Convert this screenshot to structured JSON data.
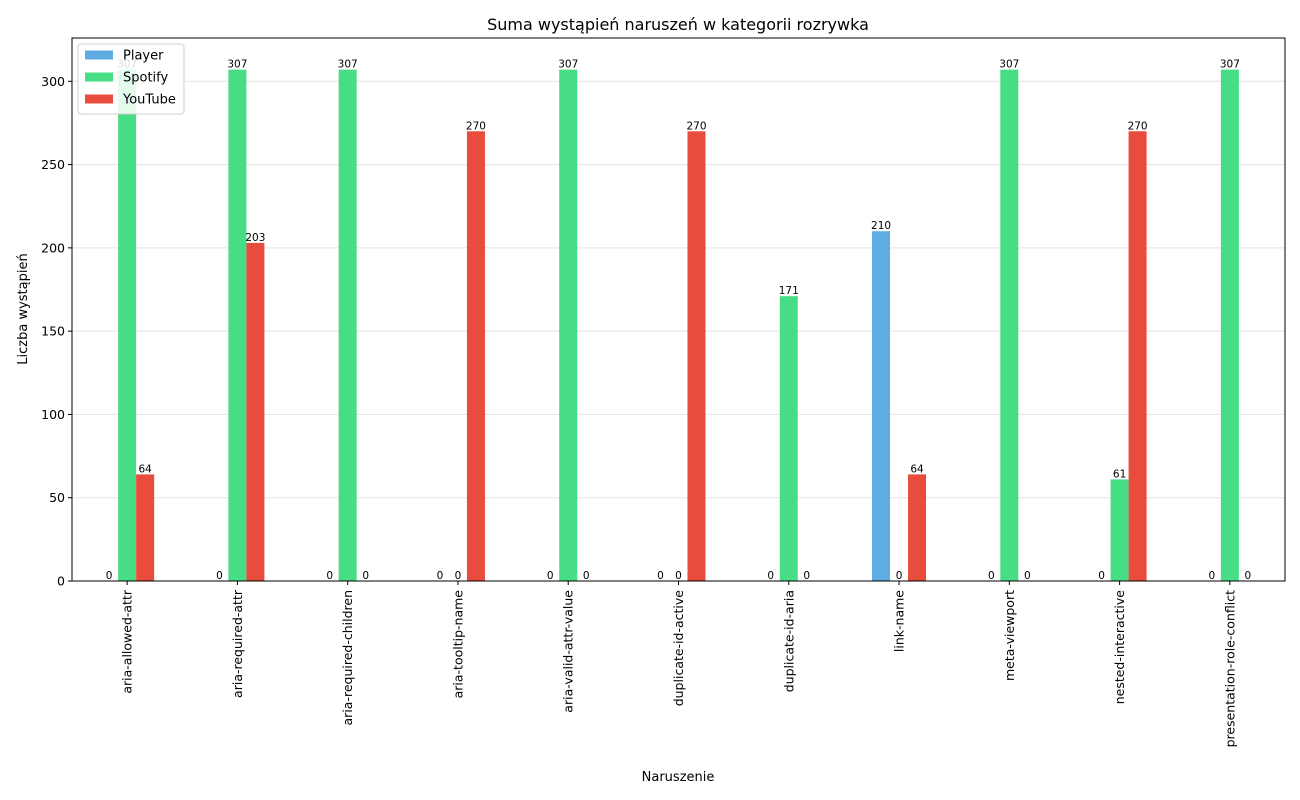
{
  "chart_data": {
    "type": "bar",
    "title": "Suma wystąpień naruszeń w kategorii rozrywka",
    "xlabel": "Naruszenie",
    "ylabel": "Liczba wystąpień",
    "ylim": [
      0,
      326
    ],
    "yticks": [
      0,
      50,
      100,
      150,
      200,
      250,
      300
    ],
    "grid": "y",
    "legend_position": "top-left",
    "categories": [
      "aria-allowed-attr",
      "aria-required-attr",
      "aria-required-children",
      "aria-tooltip-name",
      "aria-valid-attr-value",
      "duplicate-id-active",
      "duplicate-id-aria",
      "link-name",
      "meta-viewport",
      "nested-interactive",
      "presentation-role-conflict"
    ],
    "series": [
      {
        "name": "Player",
        "color": "#5dade2",
        "values": [
          0,
          0,
          0,
          0,
          0,
          0,
          0,
          210,
          0,
          0,
          0
        ]
      },
      {
        "name": "Spotify",
        "color": "#47dd84",
        "values": [
          307,
          307,
          307,
          0,
          307,
          0,
          171,
          0,
          307,
          61,
          307
        ]
      },
      {
        "name": "YouTube",
        "color": "#e74c3c",
        "values": [
          64,
          203,
          0,
          270,
          0,
          270,
          0,
          64,
          0,
          270,
          0
        ]
      }
    ]
  }
}
